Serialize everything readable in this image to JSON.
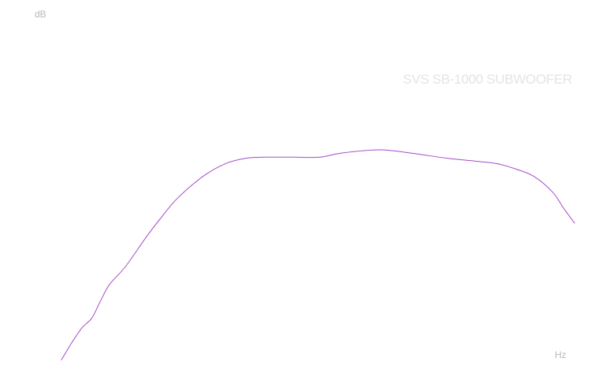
{
  "chart_data": {
    "type": "line",
    "title": "SVS SB-1000 SUBWOOFER",
    "xlabel": "Hz",
    "ylabel": "dB",
    "x_scale": "log",
    "xlim": [
      14,
      330
    ],
    "ylim": [
      -22,
      11
    ],
    "grid": false,
    "line_color": "#a64ac9",
    "series": [
      {
        "x": [
          15,
          16,
          17,
          18,
          19,
          20,
          22,
          25,
          27,
          30,
          35,
          40,
          45,
          50,
          55,
          60,
          70,
          80,
          100,
          120,
          150,
          180,
          200,
          220,
          250,
          280,
          300,
          320
        ],
        "y": [
          -21.0,
          -19.3,
          -17.9,
          -17.0,
          -15.3,
          -13.8,
          -12.1,
          -9.2,
          -7.6,
          -5.6,
          -3.5,
          -2.3,
          -1.8,
          -1.7,
          -1.7,
          -1.7,
          -1.7,
          -1.3,
          -1.0,
          -1.3,
          -1.8,
          -2.1,
          -2.3,
          -2.7,
          -3.5,
          -5.0,
          -6.6,
          -8.0
        ]
      }
    ]
  }
}
